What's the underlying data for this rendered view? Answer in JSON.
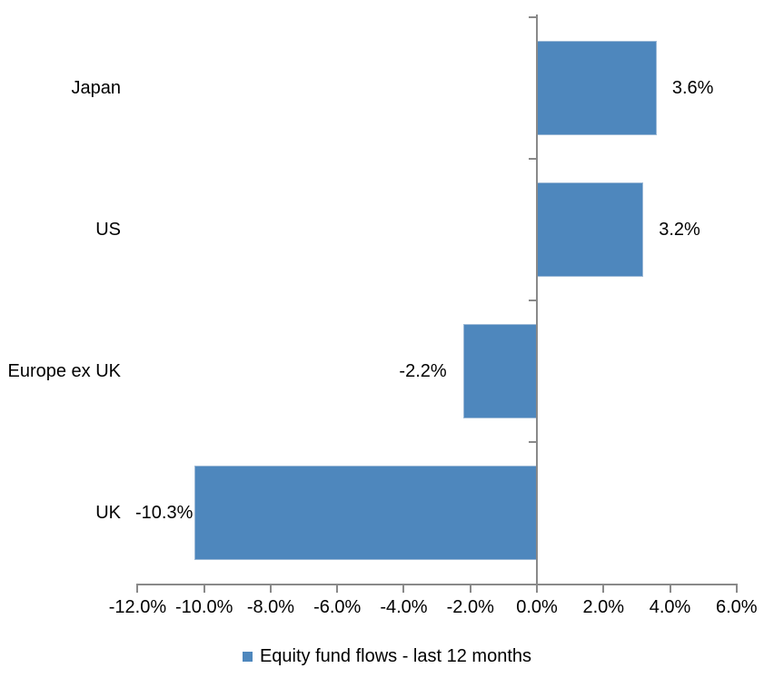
{
  "chart_data": {
    "type": "bar",
    "orientation": "horizontal",
    "title": "",
    "categories": [
      "Japan",
      "US",
      "Europe ex UK",
      "UK"
    ],
    "values": [
      3.6,
      3.2,
      -2.2,
      -10.3
    ],
    "value_labels": [
      "3.6%",
      "3.2%",
      "-2.2%",
      "-10.3%"
    ],
    "xlim": [
      -12,
      6
    ],
    "x_tick_values": [
      -12,
      -10,
      -8,
      -6,
      -4,
      -2,
      0,
      2,
      4,
      6
    ],
    "x_tick_labels": [
      "-12.0%",
      "-10.0%",
      "-8.0%",
      "-6.0%",
      "-4.0%",
      "-2.0%",
      "0.0%",
      "2.0%",
      "4.0%",
      "6.0%"
    ],
    "grid": false,
    "legend_position": "bottom",
    "legend": [
      {
        "label": "Equity fund flows - last 12 months",
        "color": "#4e87bd"
      }
    ],
    "colors": {
      "bar": "#4e87bd",
      "bar_border": "#9cb9d6",
      "axis": "#898989",
      "text": "#000000"
    }
  }
}
